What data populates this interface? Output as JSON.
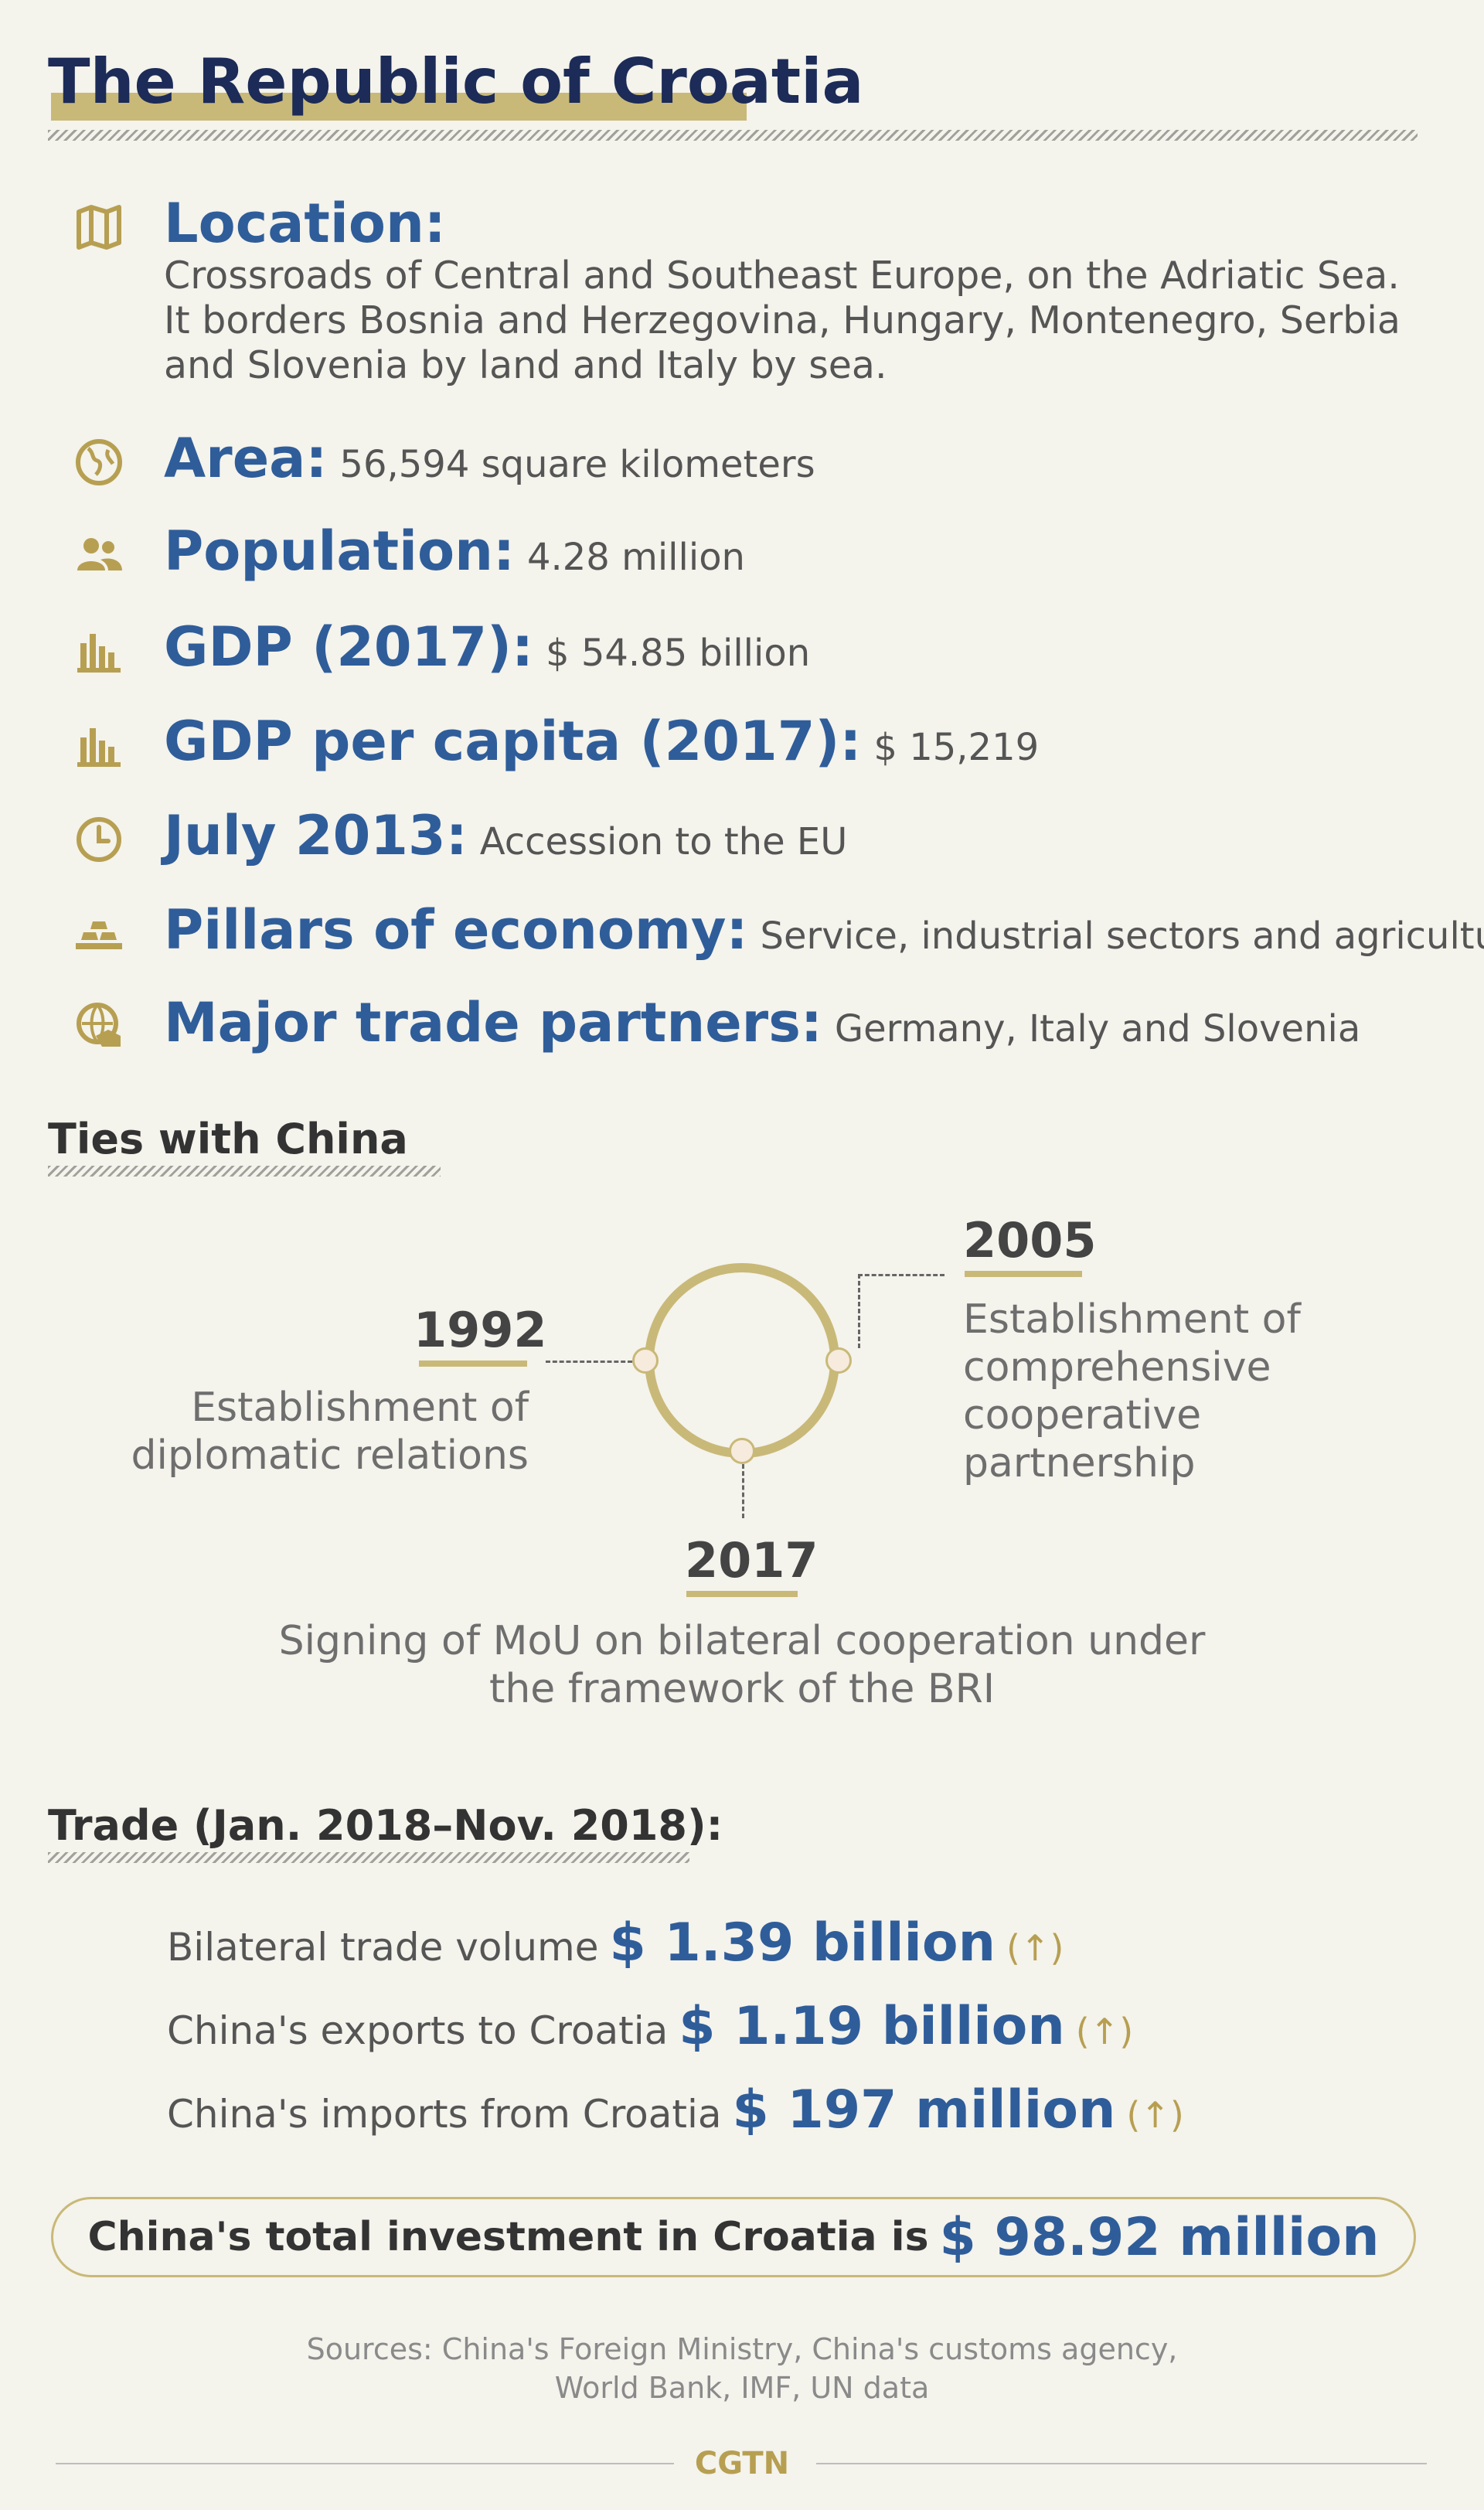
{
  "title": "The Republic of Croatia",
  "facts": {
    "location": {
      "label": "Location:",
      "lines": [
        "Crossroads of Central and Southeast Europe, on the Adriatic Sea.",
        "It borders Bosnia and Herzegovina, Hungary, Montenegro, Serbia",
        "and Slovenia by land and Italy by sea."
      ]
    },
    "area": {
      "label": "Area:",
      "value": "56,594 square kilometers"
    },
    "population": {
      "label": "Population:",
      "value": "4.28 million"
    },
    "gdp": {
      "label": "GDP (2017):",
      "value": "$ 54.85 billion"
    },
    "gdp_per_capita": {
      "label": "GDP per capita (2017):",
      "value": "$ 15,219"
    },
    "eu": {
      "label": "July 2013:",
      "value": "Accession to the EU"
    },
    "pillars": {
      "label": "Pillars of economy:",
      "value": "Service, industrial sectors and agriculture"
    },
    "partners": {
      "label": "Major trade partners:",
      "value": "Germany, Italy and Slovenia"
    }
  },
  "ties": {
    "title": "Ties with China",
    "events": [
      {
        "year": "1992",
        "lines": [
          "Establishment of",
          "diplomatic relations"
        ]
      },
      {
        "year": "2005",
        "lines": [
          "Establishment of",
          "comprehensive",
          "cooperative",
          "partnership"
        ]
      },
      {
        "year": "2017",
        "lines": [
          "Signing of MoU on bilateral cooperation under",
          "the framework of the BRI"
        ]
      }
    ]
  },
  "trade": {
    "title": "Trade (Jan. 2018–Nov. 2018):",
    "rows": [
      {
        "label": "Bilateral trade volume",
        "value": "$ 1.39 billion",
        "trend": "(↑)"
      },
      {
        "label": "China's exports to Croatia",
        "value": "$ 1.19 billion",
        "trend": "(↑)"
      },
      {
        "label": "China's imports from Croatia",
        "value": "$ 197 million",
        "trend": "(↑)"
      }
    ],
    "investment": {
      "label": "China's total investment in Croatia is",
      "value": "$ 98.92 million"
    }
  },
  "sources": {
    "line1": "Sources: China's Foreign Ministry, China's customs agency,",
    "line2": "World Bank, IMF, UN data"
  },
  "brand": "CGTN",
  "colors": {
    "navy": "#1c2b57",
    "blue": "#2f5d9a",
    "gold": "#c9b978",
    "background": "#f4f3ec"
  },
  "icons": {
    "location": "map-icon",
    "area": "globe-icon",
    "population": "people-icon",
    "gdp": "bar-chart-icon",
    "gdp_per_capita": "bar-chart-icon",
    "eu": "clock-icon",
    "pillars": "gold-bars-icon",
    "partners": "globe-handshake-icon"
  }
}
